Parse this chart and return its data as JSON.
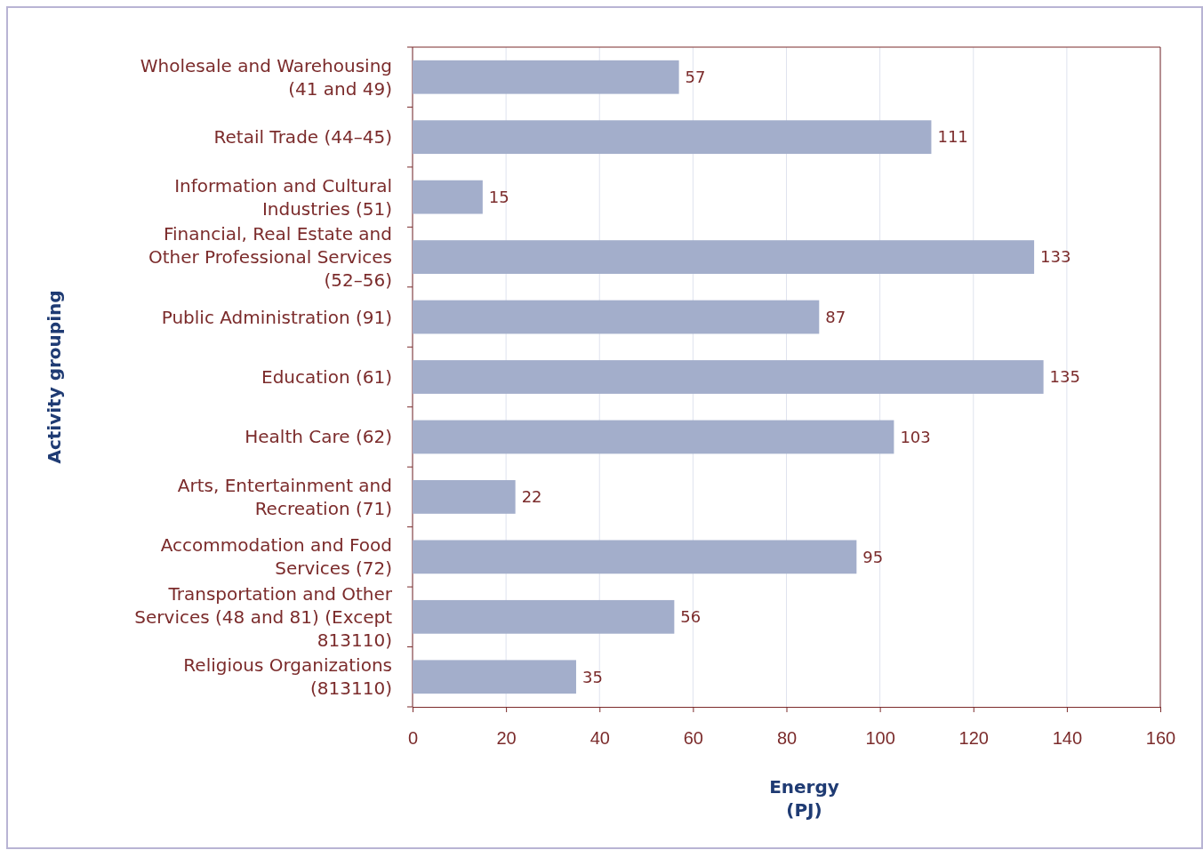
{
  "chart_data": {
    "type": "bar",
    "orientation": "horizontal",
    "xlabel": "Energy (PJ)",
    "ylabel": "Activity grouping",
    "categories": [
      "Wholesale and Warehousing (41 and 49)",
      "Retail Trade (44–45)",
      "Information and Cultural Industries (51)",
      "Financial, Real Estate and Other Professional Services (52–56)",
      "Public Administration (91)",
      "Education (61)",
      "Health Care (62)",
      "Arts, Entertainment and Recreation (71)",
      "Accommodation and Food Services (72)",
      "Transportation and Other Services (48 and 81) (Except 813110)",
      "Religious Organizations (813110)"
    ],
    "values": [
      57,
      111,
      15,
      133,
      87,
      135,
      103,
      22,
      95,
      56,
      35
    ],
    "color": "#a3aecb",
    "xlim": [
      0,
      160
    ],
    "xticks": [
      0,
      20,
      40,
      60,
      80,
      100,
      120,
      140,
      160
    ],
    "grid": "x",
    "data_labels": true
  }
}
